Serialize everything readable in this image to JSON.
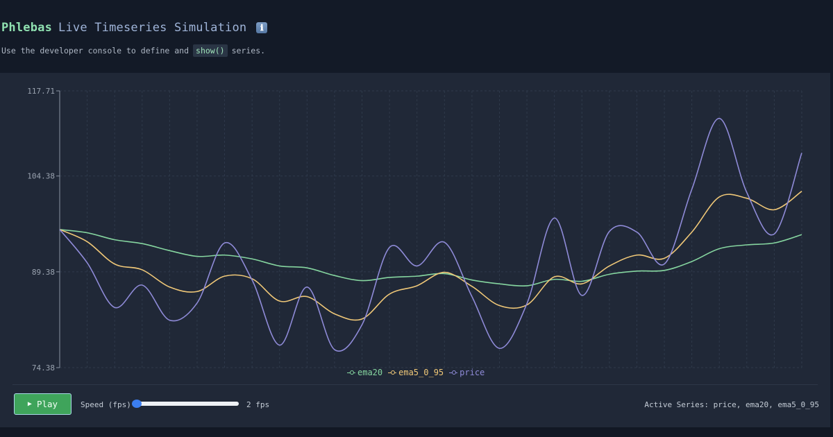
{
  "header": {
    "brand": "Phlebas",
    "title": "Live Timeseries Simulation",
    "info_icon": "ℹ",
    "subtitle_before": "Use the developer console to define and",
    "subtitle_code": "show()",
    "subtitle_after": "series."
  },
  "controls": {
    "play_label": "Play",
    "play_icon": "▶",
    "speed_label": "Speed (fps)",
    "speed_value": 2,
    "speed_display": "2 fps",
    "active_series": "Active Series: price, ema20, ema5_0_95"
  },
  "colors": {
    "ema20": "#86d6a0",
    "ema5_0_95": "#f0c878",
    "price": "#8f8bd8",
    "play_button": "#3fa45b",
    "slider_thumb": "#3b7ef0"
  },
  "chart_data": {
    "type": "line",
    "title": "",
    "xlabel": "",
    "ylabel": "",
    "ylim": [
      74.38,
      117.71
    ],
    "y_ticks": [
      "117.71",
      "104.38",
      "89.38",
      "74.38"
    ],
    "grid": true,
    "legend_position": "bottom-center",
    "x": [
      0,
      1,
      2,
      3,
      4,
      5,
      6,
      7,
      8,
      9,
      10,
      11,
      12,
      13,
      14,
      15,
      16,
      17,
      18,
      19,
      20,
      21,
      22,
      23,
      24,
      25,
      26,
      27
    ],
    "series": [
      {
        "name": "ema20",
        "color": "#86d6a0",
        "values": [
          96.0,
          95.5,
          94.4,
          93.8,
          92.7,
          91.8,
          92.0,
          91.4,
          90.3,
          90.0,
          88.8,
          88.0,
          88.5,
          88.7,
          89.1,
          88.1,
          87.5,
          87.2,
          88.2,
          87.9,
          89.0,
          89.5,
          89.6,
          91.0,
          93.0,
          93.6,
          93.9,
          95.2
        ]
      },
      {
        "name": "ema5_0_95",
        "color": "#f0c878",
        "values": [
          96.0,
          94.1,
          90.6,
          89.7,
          87.0,
          86.3,
          88.7,
          88.3,
          84.8,
          85.5,
          82.8,
          82.0,
          85.9,
          87.2,
          89.3,
          87.1,
          84.1,
          84.2,
          88.6,
          87.5,
          90.3,
          92.0,
          91.5,
          95.6,
          101.1,
          100.9,
          99.1,
          102.0
        ]
      },
      {
        "name": "price",
        "color": "#8f8bd8",
        "values": [
          96.0,
          90.8,
          83.8,
          87.3,
          81.8,
          84.5,
          93.9,
          88.1,
          77.9,
          87.0,
          77.2,
          81.1,
          93.2,
          90.3,
          94.0,
          85.5,
          77.4,
          84.4,
          97.8,
          85.7,
          95.7,
          95.6,
          90.6,
          102.3,
          113.4,
          101.8,
          95.3,
          108.0
        ]
      }
    ]
  }
}
